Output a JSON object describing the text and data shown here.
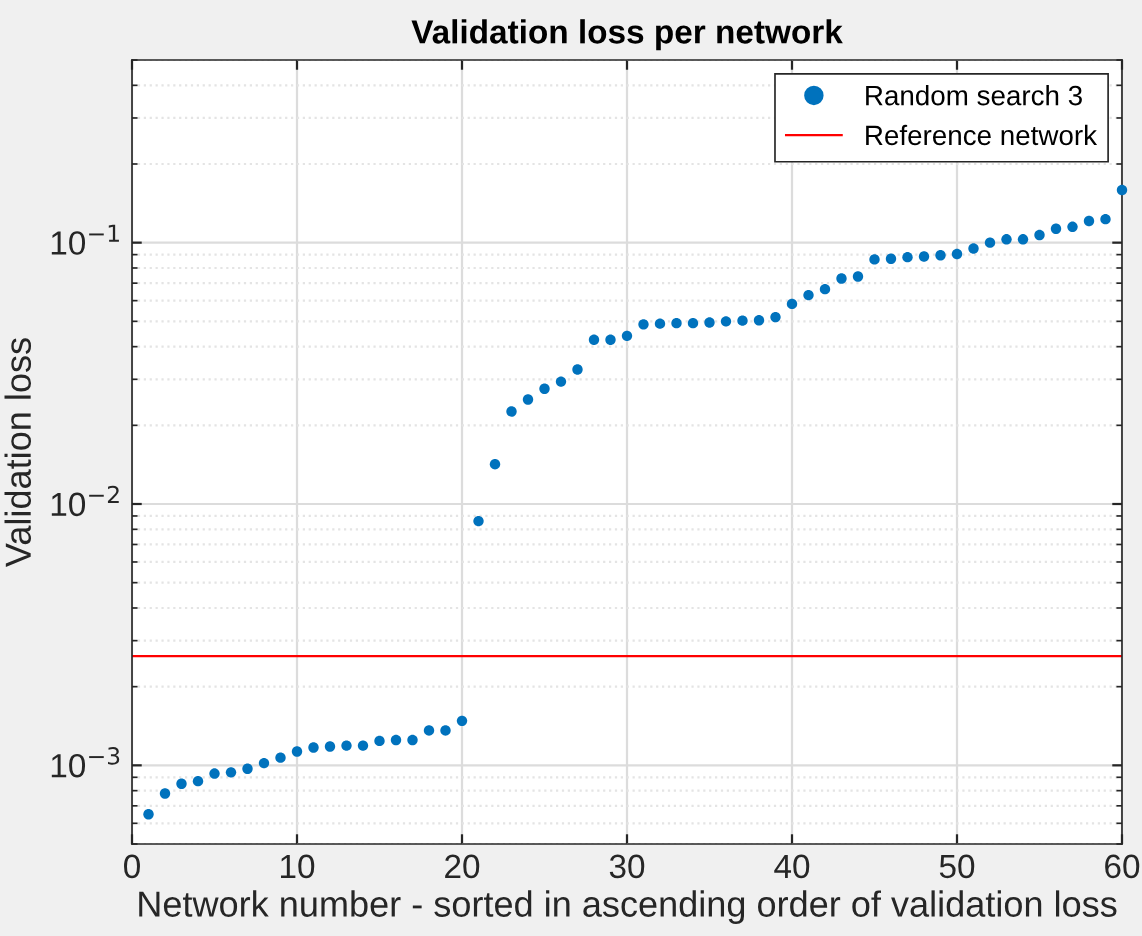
{
  "chart_data": {
    "type": "scatter",
    "title": "Validation loss per network",
    "xlabel": "Network number - sorted in ascending order of validation loss",
    "ylabel": "Validation loss",
    "x": [
      1,
      2,
      3,
      4,
      5,
      6,
      7,
      8,
      9,
      10,
      11,
      12,
      13,
      14,
      15,
      16,
      17,
      18,
      19,
      20,
      21,
      22,
      23,
      24,
      25,
      26,
      27,
      28,
      29,
      30,
      31,
      32,
      33,
      34,
      35,
      36,
      37,
      38,
      39,
      40,
      41,
      42,
      43,
      44,
      45,
      46,
      47,
      48,
      49,
      50,
      51,
      52,
      53,
      54,
      55,
      56,
      57,
      58,
      59,
      60
    ],
    "series": [
      {
        "name": "Random search 3",
        "color": "#0072bd",
        "values": [
          0.00065,
          0.00078,
          0.00085,
          0.00087,
          0.00093,
          0.00094,
          0.00097,
          0.00102,
          0.00107,
          0.00113,
          0.00117,
          0.00118,
          0.00119,
          0.00119,
          0.00124,
          0.00125,
          0.00125,
          0.00136,
          0.00136,
          0.00148,
          0.0086,
          0.0142,
          0.0226,
          0.0251,
          0.0276,
          0.0294,
          0.0327,
          0.0425,
          0.0425,
          0.044,
          0.0487,
          0.049,
          0.0492,
          0.0492,
          0.0495,
          0.05,
          0.0503,
          0.0505,
          0.0519,
          0.0583,
          0.063,
          0.0664,
          0.0729,
          0.0742,
          0.0863,
          0.0868,
          0.088,
          0.0885,
          0.0895,
          0.0905,
          0.095,
          0.1,
          0.103,
          0.103,
          0.107,
          0.113,
          0.115,
          0.121,
          0.123,
          0.159
        ]
      }
    ],
    "ref_lines": [
      {
        "axis": "y",
        "value": 0.00262,
        "label": "Reference network",
        "color": "#ff0000"
      }
    ],
    "log": "y",
    "xlim": [
      0,
      60
    ],
    "xticks": [
      0,
      10,
      20,
      30,
      40,
      50,
      60
    ],
    "ylim": [
      0.0005,
      0.5
    ],
    "yticks": [
      {
        "value": 0.001,
        "label": "10$^{−3}$"
      },
      {
        "value": 0.01,
        "label": "10$^{−2}$"
      },
      {
        "value": 0.1,
        "label": "10$^{−1}$"
      }
    ],
    "grid": true,
    "legend": "top right",
    "marker": "circle"
  }
}
